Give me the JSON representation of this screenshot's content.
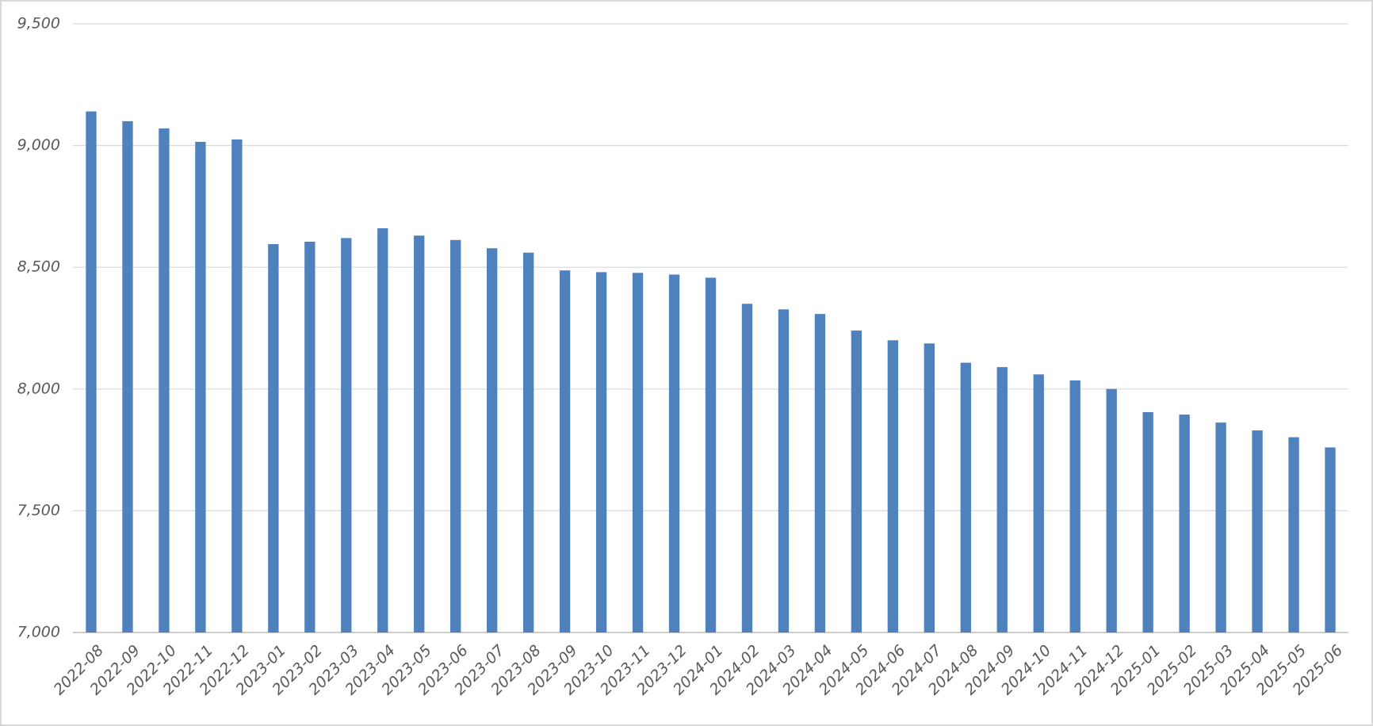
{
  "chart_data": {
    "type": "bar",
    "categories": [
      "2022-08",
      "2022-09",
      "2022-10",
      "2022-11",
      "2022-12",
      "2023-01",
      "2023-02",
      "2023-03",
      "2023-04",
      "2023-05",
      "2023-06",
      "2023-07",
      "2023-08",
      "2023-09",
      "2023-10",
      "2023-11",
      "2023-12",
      "2024-01",
      "2024-02",
      "2024-03",
      "2024-04",
      "2024-05",
      "2024-06",
      "2024-07",
      "2024-08",
      "2024-09",
      "2024-10",
      "2024-11",
      "2024-12",
      "2025-01",
      "2025-02",
      "2025-03",
      "2025-04",
      "2025-05",
      "2025-06"
    ],
    "values": [
      9140,
      9100,
      9070,
      9015,
      9025,
      8595,
      8605,
      8620,
      8660,
      8630,
      8612,
      8578,
      8560,
      8487,
      8480,
      8477,
      8470,
      8457,
      8350,
      8327,
      8308,
      8240,
      8200,
      8187,
      8108,
      8090,
      8060,
      8035,
      8000,
      7905,
      7895,
      7862,
      7830,
      7802,
      7760
    ],
    "color": "#4f81bd",
    "ylim": [
      7000,
      9500
    ],
    "yticks": [
      {
        "value": 7000,
        "label": "7,000"
      },
      {
        "value": 7500,
        "label": "7,500"
      },
      {
        "value": 8000,
        "label": "8,000"
      },
      {
        "value": 8500,
        "label": "8,500"
      },
      {
        "value": 9000,
        "label": "9,000"
      },
      {
        "value": 9500,
        "label": "9,500"
      }
    ],
    "grid": true
  }
}
